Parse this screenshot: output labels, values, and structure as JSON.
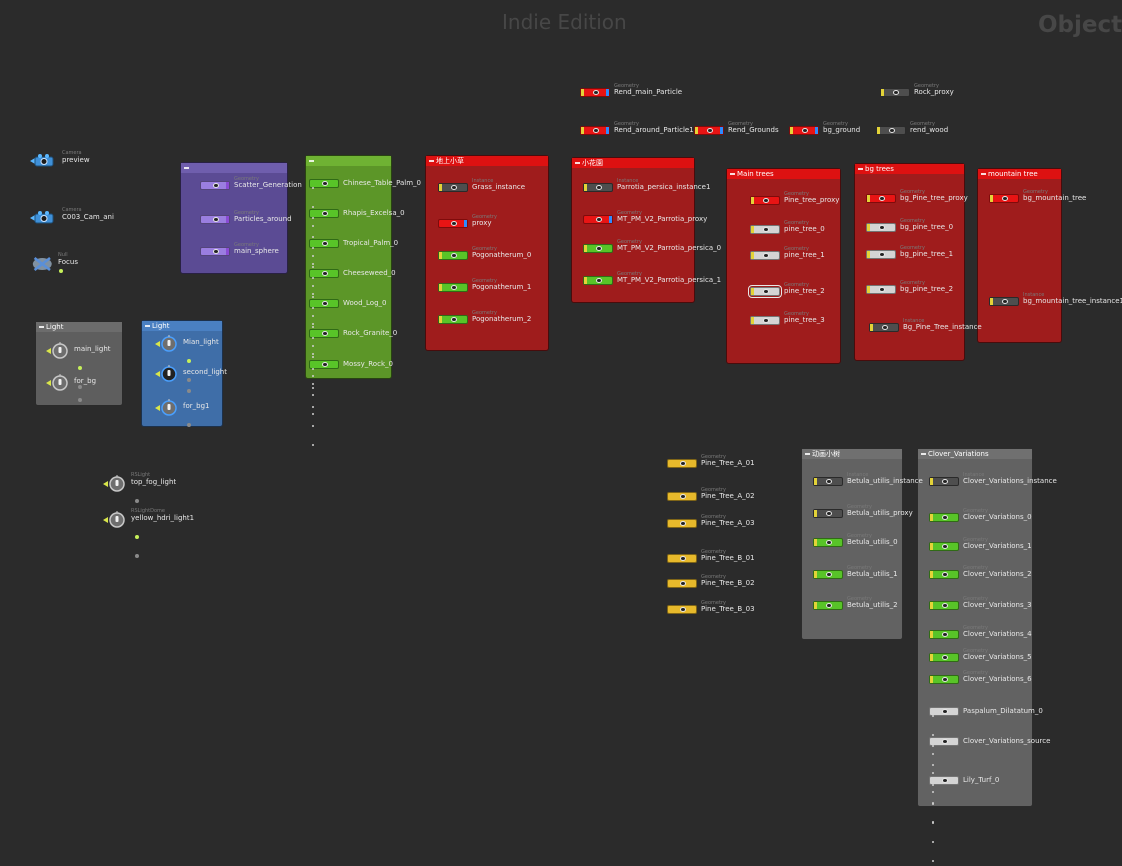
{
  "watermarks": {
    "edition": "Indie Edition",
    "context": "Objects"
  },
  "colors": {
    "bg": "#2b2b2b",
    "purple": "#5b4b94",
    "green": "#5c9628",
    "red": "#9f1c1c",
    "red_header": "#dd1111",
    "grey": "#5e5e5e",
    "blue": "#3f6ea8",
    "grey_light": "#626262",
    "node_green": "#58c428",
    "node_yellow": "#e7b92b",
    "node_red": "#e81414",
    "node_white": "#d4d4d4",
    "node_dark": "#4e4e4e",
    "flag_blue": "#2d8cff",
    "flag_purple": "#8a4bd4",
    "flag_yellow": "#e3d338"
  },
  "boxes": [
    {
      "name": "purple",
      "title": ""
    },
    {
      "name": "green",
      "title": ""
    },
    {
      "name": "grass",
      "title": "地上小草"
    },
    {
      "name": "flowers",
      "title": "小花園"
    },
    {
      "name": "main-trees",
      "title": "Main trees"
    },
    {
      "name": "bg-trees",
      "title": "bg trees"
    },
    {
      "name": "mountain-tree",
      "title": "mountain tree"
    },
    {
      "name": "light-grey",
      "title": "Light"
    },
    {
      "name": "light-blue",
      "title": "Light"
    },
    {
      "name": "small-trees",
      "title": "动画小树"
    },
    {
      "name": "clover",
      "title": "Clover_Variations"
    }
  ],
  "nodes": [
    {
      "id": "rend_main_particle",
      "type": "Geometry",
      "label": "Rend_main_Particle",
      "color": "red",
      "flags": "by"
    },
    {
      "id": "rend_around_particle1",
      "type": "Geometry",
      "label": "Rend_around_Particle1",
      "color": "red",
      "flags": "by"
    },
    {
      "id": "rend_grounds",
      "type": "Geometry",
      "label": "Rend_Grounds",
      "color": "red",
      "flags": "by"
    },
    {
      "id": "bg_ground",
      "type": "Geometry",
      "label": "bg_ground",
      "color": "red",
      "flags": "by"
    },
    {
      "id": "rock_proxy",
      "type": "Geometry",
      "label": "Rock_proxy",
      "color": "dark",
      "flags": "y"
    },
    {
      "id": "rend_wood",
      "type": "Geometry",
      "label": "rend_wood",
      "color": "dark",
      "flags": "y"
    },
    {
      "id": "scatter_generation",
      "type": "Geometry",
      "label": "Scatter_Generation",
      "color": "purple",
      "flags": "p"
    },
    {
      "id": "particles_around",
      "type": "Geometry",
      "label": "Particles_around",
      "color": "purple",
      "flags": "p"
    },
    {
      "id": "main_sphere",
      "type": "Geometry",
      "label": "main_sphere",
      "color": "purple",
      "flags": "p"
    },
    {
      "id": "chinese_table_palm",
      "type": "",
      "label": "Chinese_Table_Palm_0",
      "color": "green",
      "flags": "",
      "dots": 5
    },
    {
      "id": "rhapis_excelsa",
      "type": "",
      "label": "Rhapis_Excelsa_0",
      "color": "green",
      "flags": "",
      "dots": 5
    },
    {
      "id": "tropical_palm",
      "type": "",
      "label": "Tropical_Palm_0",
      "color": "green",
      "flags": "",
      "dots": 5
    },
    {
      "id": "cheeseweed",
      "type": "",
      "label": "Cheeseweed_0",
      "color": "green",
      "flags": "",
      "dots": 5
    },
    {
      "id": "wood_log",
      "type": "",
      "label": "Wood_Log_0",
      "color": "green",
      "flags": "",
      "dots": 5
    },
    {
      "id": "rock_granite",
      "type": "",
      "label": "Rock_Granite_0",
      "color": "green",
      "flags": "",
      "dots": 5
    },
    {
      "id": "mossy_rock",
      "type": "",
      "label": "Mossy_Rock_0",
      "color": "green",
      "flags": "",
      "dots": 5
    },
    {
      "id": "grass_instance",
      "type": "Instance",
      "label": "Grass_instance",
      "color": "dark",
      "flags": "y"
    },
    {
      "id": "proxy",
      "type": "Geometry",
      "label": "proxy",
      "color": "red",
      "flags": "b"
    },
    {
      "id": "pogonatherum_0",
      "type": "Geometry",
      "label": "Pogonatherum_0",
      "color": "green",
      "flags": "y"
    },
    {
      "id": "pogonatherum_1",
      "type": "Geometry",
      "label": "Pogonatherum_1",
      "color": "green",
      "flags": "y"
    },
    {
      "id": "pogonatherum_2",
      "type": "Geometry",
      "label": "Pogonatherum_2",
      "color": "green",
      "flags": "y"
    },
    {
      "id": "parrotia_instance1",
      "type": "Instance",
      "label": "Parrotia_persica_instance1",
      "color": "dark",
      "flags": "y"
    },
    {
      "id": "parrotia_proxy",
      "type": "Geometry",
      "label": "MT_PM_V2_Parrotia_proxy",
      "color": "red",
      "flags": "b"
    },
    {
      "id": "parrotia_0",
      "type": "Geometry",
      "label": "MT_PM_V2_Parrotia_persica_0",
      "color": "green",
      "flags": "y"
    },
    {
      "id": "parrotia_1",
      "type": "Geometry",
      "label": "MT_PM_V2_Parrotia_persica_1",
      "color": "green",
      "flags": "y"
    },
    {
      "id": "pine_tree_proxy",
      "type": "Geometry",
      "label": "Pine_tree_proxy",
      "color": "red",
      "flags": "y"
    },
    {
      "id": "pine_tree_0",
      "type": "Geometry",
      "label": "pine_tree_0",
      "color": "white",
      "flags": "y"
    },
    {
      "id": "pine_tree_1",
      "type": "Geometry",
      "label": "pine_tree_1",
      "color": "white",
      "flags": "y"
    },
    {
      "id": "pine_tree_2",
      "type": "Geometry",
      "label": "pine_tree_2",
      "color": "white",
      "flags": "y",
      "selected": true
    },
    {
      "id": "pine_tree_3",
      "type": "Geometry",
      "label": "pine_tree_3",
      "color": "white",
      "flags": "y"
    },
    {
      "id": "bg_pine_tree_proxy",
      "type": "Geometry",
      "label": "bg_Pine_tree_proxy",
      "color": "red",
      "flags": "y"
    },
    {
      "id": "bg_pine_tree_0",
      "type": "Geometry",
      "label": "bg_pine_tree_0",
      "color": "white",
      "flags": "y"
    },
    {
      "id": "bg_pine_tree_1",
      "type": "Geometry",
      "label": "bg_pine_tree_1",
      "color": "white",
      "flags": "y"
    },
    {
      "id": "bg_pine_tree_2",
      "type": "Geometry",
      "label": "bg_pine_tree_2",
      "color": "white",
      "flags": "y"
    },
    {
      "id": "bg_pine_tree_instance",
      "type": "Instance",
      "label": "Bg_Pine_Tree_instance",
      "color": "dark",
      "flags": "y"
    },
    {
      "id": "bg_mountain_tree",
      "type": "Geometry",
      "label": "bg_mountain_tree",
      "color": "red",
      "flags": "y"
    },
    {
      "id": "bg_mountain_tree_instance1",
      "type": "Instance",
      "label": "bg_mountain_tree_instance1",
      "color": "dark",
      "flags": "y"
    },
    {
      "id": "pine_tree_a_01",
      "type": "Geometry",
      "label": "Pine_Tree_A_01",
      "color": "yellow",
      "flags": ""
    },
    {
      "id": "pine_tree_a_02",
      "type": "Geometry",
      "label": "Pine_Tree_A_02",
      "color": "yellow",
      "flags": ""
    },
    {
      "id": "pine_tree_a_03",
      "type": "Geometry",
      "label": "Pine_Tree_A_03",
      "color": "yellow",
      "flags": ""
    },
    {
      "id": "pine_tree_b_01",
      "type": "Geometry",
      "label": "Pine_Tree_B_01",
      "color": "yellow",
      "flags": ""
    },
    {
      "id": "pine_tree_b_02",
      "type": "Geometry",
      "label": "Pine_Tree_B_02",
      "color": "yellow",
      "flags": ""
    },
    {
      "id": "pine_tree_b_03",
      "type": "Geometry",
      "label": "Pine_Tree_B_03",
      "color": "yellow",
      "flags": ""
    },
    {
      "id": "betula_instance",
      "type": "Instance",
      "label": "Betula_utilis_instance",
      "color": "dark",
      "flags": "y"
    },
    {
      "id": "betula_proxy",
      "type": "Geometry",
      "label": "Betula_utilis_proxy",
      "color": "dark",
      "flags": "y"
    },
    {
      "id": "betula_0",
      "type": "Geometry",
      "label": "Betula_utilis_0",
      "color": "green",
      "flags": "y"
    },
    {
      "id": "betula_1",
      "type": "Geometry",
      "label": "Betula_utilis_1",
      "color": "green",
      "flags": "y"
    },
    {
      "id": "betula_2",
      "type": "Geometry",
      "label": "Betula_utilis_2",
      "color": "green",
      "flags": "y"
    },
    {
      "id": "clover_instance",
      "type": "Instance",
      "label": "Clover_Variations_instance",
      "color": "dark",
      "flags": "y"
    },
    {
      "id": "clover_0",
      "type": "Geometry",
      "label": "Clover_Variations_0",
      "color": "green",
      "flags": "y"
    },
    {
      "id": "clover_1",
      "type": "Geometry",
      "label": "Clover_Variations_1",
      "color": "green",
      "flags": "y"
    },
    {
      "id": "clover_2",
      "type": "Geometry",
      "label": "Clover_Variations_2",
      "color": "green",
      "flags": "y"
    },
    {
      "id": "clover_3",
      "type": "Geometry",
      "label": "Clover_Variations_3",
      "color": "green",
      "flags": "y"
    },
    {
      "id": "clover_4",
      "type": "Geometry",
      "label": "Clover_Variations_4",
      "color": "green",
      "flags": "y"
    },
    {
      "id": "clover_5",
      "type": "Geometry",
      "label": "Clover_Variations_5",
      "color": "green",
      "flags": "y"
    },
    {
      "id": "clover_6",
      "type": "Geometry",
      "label": "Clover_Variations_6",
      "color": "green",
      "flags": "y"
    },
    {
      "id": "paspalum",
      "type": "",
      "label": "Paspalum_Dilatatum_0",
      "color": "white",
      "flags": "",
      "dots": 5
    },
    {
      "id": "clover_source",
      "type": "",
      "label": "Clover_Variations_source",
      "color": "white",
      "flags": "",
      "dots": 5
    },
    {
      "id": "lily_turf",
      "type": "",
      "label": "Lily_Turf_0",
      "color": "white",
      "flags": "",
      "dots": 5
    }
  ],
  "cameras": [
    {
      "id": "cam_preview",
      "type": "Camera",
      "label": "preview"
    },
    {
      "id": "cam_c003",
      "type": "Camera",
      "label": "C003_Cam_ani"
    }
  ],
  "nulls": [
    {
      "id": "null_focus",
      "type": "Null",
      "label": "Focus"
    }
  ],
  "lights": [
    {
      "id": "main_light",
      "type": "",
      "label": "main_light",
      "dots": [
        "#c6f05a",
        "#8a8a8a"
      ]
    },
    {
      "id": "for_bg",
      "type": "",
      "label": "for_bg",
      "dots": [
        "#8a8a8a"
      ]
    },
    {
      "id": "mian_light",
      "type": "",
      "label": "Mian_light",
      "dots": [
        "#c6f05a",
        "#8a8a8a"
      ]
    },
    {
      "id": "second_light",
      "type": "",
      "label": "second_light",
      "dots": [
        "#8a8a8a"
      ],
      "dark": true
    },
    {
      "id": "for_bg1",
      "type": "",
      "label": "for_bg1",
      "dots": [
        "#8a8a8a"
      ]
    },
    {
      "id": "top_fog_light",
      "type": "RSLight",
      "label": "top_fog_light",
      "dots": [
        "#8a8a8a"
      ]
    },
    {
      "id": "yellow_hdri_light1",
      "type": "RSLightDome",
      "label": "yellow_hdri_light1",
      "dots": [
        "#c6f05a",
        "#8a8a8a"
      ]
    }
  ]
}
